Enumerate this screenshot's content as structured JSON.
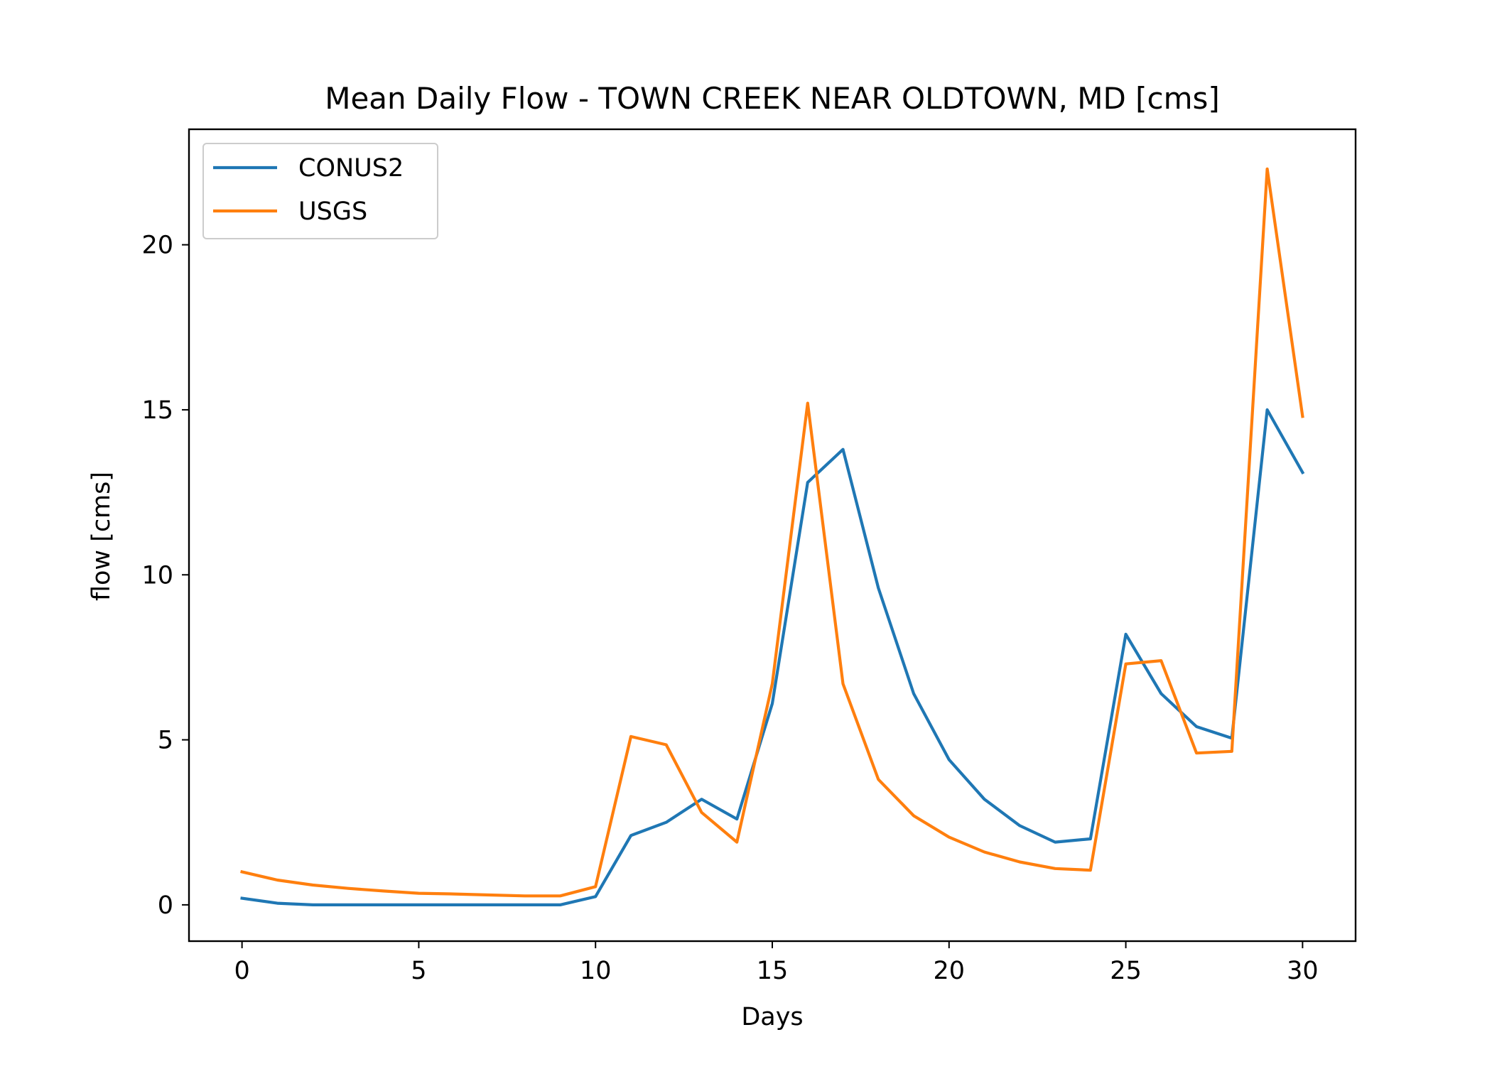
{
  "chart_data": {
    "type": "line",
    "title": "Mean Daily Flow - TOWN CREEK NEAR OLDTOWN, MD [cms]",
    "xlabel": "Days",
    "ylabel": "flow [cms]",
    "xlim": [
      -1.5,
      31.5
    ],
    "ylim": [
      -1.1,
      23.5
    ],
    "xticks": [
      0,
      5,
      10,
      15,
      20,
      25,
      30
    ],
    "yticks": [
      0,
      5,
      10,
      15,
      20
    ],
    "grid": false,
    "legend_position": "upper left",
    "x": [
      0,
      1,
      2,
      3,
      4,
      5,
      6,
      7,
      8,
      9,
      10,
      11,
      12,
      13,
      14,
      15,
      16,
      17,
      18,
      19,
      20,
      21,
      22,
      23,
      24,
      25,
      26,
      27,
      28,
      29,
      30
    ],
    "series": [
      {
        "name": "CONUS2",
        "color": "#1f77b4",
        "values": [
          0.2,
          0.05,
          0.0,
          0.0,
          0.0,
          0.0,
          0.0,
          0.0,
          0.0,
          0.0,
          0.25,
          2.1,
          2.5,
          3.2,
          2.6,
          6.1,
          12.8,
          13.8,
          9.6,
          6.4,
          4.4,
          3.2,
          2.4,
          1.9,
          2.0,
          8.2,
          6.4,
          5.4,
          5.05,
          15.0,
          13.1
        ]
      },
      {
        "name": "USGS",
        "color": "#ff7f0e",
        "values": [
          1.0,
          0.75,
          0.6,
          0.5,
          0.42,
          0.35,
          0.33,
          0.3,
          0.27,
          0.27,
          0.55,
          5.1,
          4.85,
          2.8,
          1.9,
          6.7,
          15.2,
          6.7,
          3.8,
          2.7,
          2.05,
          1.6,
          1.3,
          1.1,
          1.05,
          7.3,
          7.4,
          4.6,
          4.65,
          22.3,
          14.8
        ]
      }
    ]
  }
}
